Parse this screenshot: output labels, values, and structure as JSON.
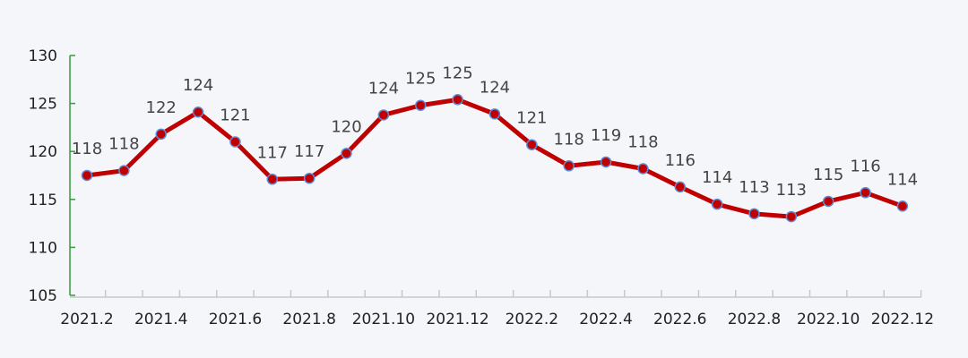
{
  "chart_data": {
    "type": "line",
    "title": "",
    "xlabel": "",
    "ylabel": "",
    "ylim": [
      105,
      130
    ],
    "yticks": [
      "105",
      "110",
      "115",
      "120",
      "125",
      "130"
    ],
    "grid": false,
    "x": [
      "2021.2",
      "2021.3",
      "2021.4",
      "2021.5",
      "2021.6",
      "2021.7",
      "2021.8",
      "2021.9",
      "2021.10",
      "2021.11",
      "2021.12",
      "2022.1",
      "2022.2",
      "2022.3",
      "2022.4",
      "2022.5",
      "2022.6",
      "2022.7",
      "2022.8",
      "2022.9",
      "2022.10",
      "2022.11",
      "2022.12"
    ],
    "xtick_labels": [
      "2021.2",
      "2021.4",
      "2021.6",
      "2021.8",
      "2021.10",
      "2021.12",
      "2022.2",
      "2022.4",
      "2022.6",
      "2022.8",
      "2022.10",
      "2022.12"
    ],
    "series": [
      {
        "values": [
          117.5,
          118,
          121.8,
          124.1,
          121,
          117.1,
          117.2,
          119.8,
          123.8,
          124.8,
          125.4,
          123.9,
          120.7,
          118.5,
          118.9,
          118.2,
          116.3,
          114.5,
          113.5,
          113.2,
          114.8,
          115.7,
          114.3
        ],
        "data_labels": [
          "118",
          "118",
          "122",
          "124",
          "121",
          "117",
          "117",
          "120",
          "124",
          "125",
          "125",
          "124",
          "121",
          "118",
          "119",
          "118",
          "116",
          "114",
          "113",
          "113",
          "115",
          "116",
          "114"
        ],
        "color": "#c00000",
        "marker_edge": "#5b8bd8"
      }
    ],
    "axis_color_y": "#3a9a3a",
    "axis_color_x": "#c8c8c8"
  }
}
